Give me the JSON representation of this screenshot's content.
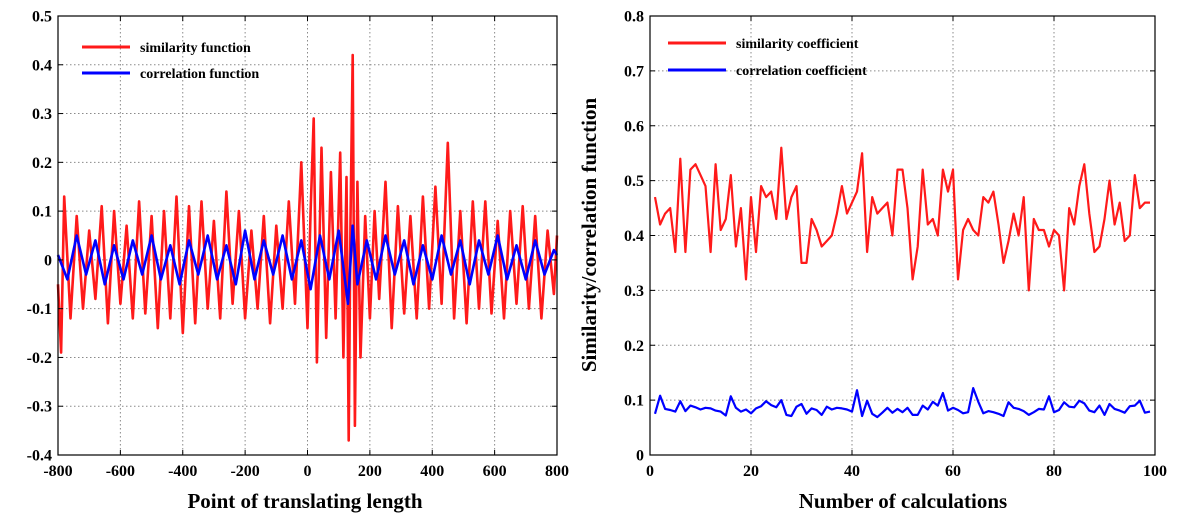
{
  "chart_data": [
    {
      "type": "line",
      "title": "",
      "xlabel": "Point of translating length",
      "ylabel": "",
      "xlim": [
        -800,
        800
      ],
      "ylim": [
        -0.4,
        0.5
      ],
      "xticks": [
        "-800",
        "-600",
        "-400",
        "-200",
        "0",
        "200",
        "400",
        "600",
        "800"
      ],
      "yticks": [
        "-0.4",
        "-0.3",
        "-0.2",
        "-0.1",
        "0",
        "0.1",
        "0.2",
        "0.3",
        "0.4",
        "0.5"
      ],
      "grid": true,
      "legend_position": "top-left",
      "series": [
        {
          "name": "similarity function",
          "color": "#ff1a1a",
          "x": [
            -800,
            -790,
            -780,
            -760,
            -740,
            -720,
            -700,
            -680,
            -660,
            -640,
            -620,
            -600,
            -580,
            -560,
            -540,
            -520,
            -500,
            -480,
            -460,
            -440,
            -420,
            -400,
            -380,
            -360,
            -340,
            -320,
            -300,
            -280,
            -260,
            -240,
            -220,
            -200,
            -180,
            -160,
            -140,
            -120,
            -100,
            -80,
            -60,
            -40,
            -20,
            0,
            10,
            20,
            30,
            45,
            60,
            75,
            90,
            105,
            115,
            125,
            132,
            138,
            145,
            152,
            160,
            170,
            185,
            200,
            215,
            230,
            250,
            270,
            290,
            310,
            330,
            350,
            370,
            390,
            410,
            430,
            450,
            470,
            490,
            510,
            530,
            550,
            570,
            590,
            610,
            630,
            650,
            670,
            690,
            710,
            730,
            750,
            770,
            790,
            800
          ],
          "values": [
            -0.05,
            -0.19,
            0.13,
            -0.12,
            0.09,
            -0.1,
            0.06,
            -0.08,
            0.11,
            -0.13,
            0.1,
            -0.09,
            0.07,
            -0.12,
            0.12,
            -0.11,
            0.09,
            -0.14,
            0.1,
            -0.12,
            0.13,
            -0.15,
            0.11,
            -0.13,
            0.12,
            -0.1,
            0.08,
            -0.12,
            0.14,
            -0.09,
            0.1,
            -0.12,
            0.06,
            -0.1,
            0.09,
            -0.13,
            0.07,
            -0.1,
            0.12,
            -0.09,
            0.2,
            -0.14,
            0.1,
            0.29,
            -0.21,
            0.23,
            -0.16,
            0.18,
            -0.12,
            0.22,
            -0.2,
            0.17,
            -0.37,
            0.08,
            0.42,
            -0.34,
            0.16,
            -0.2,
            0.09,
            -0.12,
            0.1,
            -0.08,
            0.16,
            -0.14,
            0.11,
            -0.11,
            0.09,
            -0.12,
            0.13,
            -0.1,
            0.15,
            -0.09,
            0.24,
            -0.12,
            0.1,
            -0.13,
            0.12,
            -0.1,
            0.12,
            -0.11,
            0.08,
            -0.12,
            0.1,
            -0.09,
            0.11,
            -0.1,
            0.09,
            -0.12,
            0.06,
            -0.07,
            0.05
          ]
        },
        {
          "name": "correlation function",
          "color": "#0000ff",
          "x": [
            -800,
            -770,
            -740,
            -710,
            -680,
            -650,
            -620,
            -590,
            -560,
            -530,
            -500,
            -470,
            -440,
            -410,
            -380,
            -350,
            -320,
            -290,
            -260,
            -230,
            -200,
            -170,
            -140,
            -110,
            -80,
            -50,
            -20,
            10,
            40,
            70,
            100,
            130,
            145,
            160,
            190,
            220,
            250,
            280,
            310,
            340,
            370,
            400,
            430,
            460,
            490,
            520,
            550,
            580,
            610,
            640,
            670,
            700,
            730,
            760,
            790,
            800
          ],
          "values": [
            0.01,
            -0.04,
            0.05,
            -0.03,
            0.04,
            -0.05,
            0.03,
            -0.04,
            0.04,
            -0.03,
            0.05,
            -0.04,
            0.03,
            -0.05,
            0.04,
            -0.03,
            0.05,
            -0.04,
            0.03,
            -0.05,
            0.06,
            -0.04,
            0.04,
            -0.03,
            0.05,
            -0.04,
            0.04,
            -0.06,
            0.05,
            -0.04,
            0.06,
            -0.09,
            0.07,
            -0.05,
            0.04,
            -0.04,
            0.05,
            -0.03,
            0.04,
            -0.05,
            0.03,
            -0.04,
            0.05,
            -0.03,
            0.04,
            -0.05,
            0.04,
            -0.03,
            0.05,
            -0.04,
            0.03,
            -0.04,
            0.04,
            -0.03,
            0.02,
            0.01
          ]
        }
      ]
    },
    {
      "type": "line",
      "title": "",
      "xlabel": "Number of calculations",
      "ylabel": "Similarity/correlation function",
      "xlim": [
        0,
        100
      ],
      "ylim": [
        0,
        0.8
      ],
      "xticks": [
        "0",
        "20",
        "40",
        "60",
        "80",
        "100"
      ],
      "yticks": [
        "0",
        "0.1",
        "0.2",
        "0.3",
        "0.4",
        "0.5",
        "0.6",
        "0.7",
        "0.8"
      ],
      "grid": true,
      "legend_position": "top-left",
      "series": [
        {
          "name": "similarity coefficient",
          "color": "#ff1a1a",
          "x": [
            1,
            2,
            3,
            4,
            5,
            6,
            7,
            8,
            9,
            10,
            11,
            12,
            13,
            14,
            15,
            16,
            17,
            18,
            19,
            20,
            21,
            22,
            23,
            24,
            25,
            26,
            27,
            28,
            29,
            30,
            31,
            32,
            33,
            34,
            35,
            36,
            37,
            38,
            39,
            40,
            41,
            42,
            43,
            44,
            45,
            46,
            47,
            48,
            49,
            50,
            51,
            52,
            53,
            54,
            55,
            56,
            57,
            58,
            59,
            60,
            61,
            62,
            63,
            64,
            65,
            66,
            67,
            68,
            69,
            70,
            71,
            72,
            73,
            74,
            75,
            76,
            77,
            78,
            79,
            80,
            81,
            82,
            83,
            84,
            85,
            86,
            87,
            88,
            89,
            90,
            91,
            92,
            93,
            94,
            95,
            96,
            97,
            98,
            99
          ],
          "values": [
            0.47,
            0.42,
            0.44,
            0.45,
            0.37,
            0.54,
            0.37,
            0.52,
            0.53,
            0.51,
            0.49,
            0.37,
            0.53,
            0.41,
            0.43,
            0.51,
            0.38,
            0.45,
            0.32,
            0.47,
            0.37,
            0.49,
            0.47,
            0.48,
            0.43,
            0.56,
            0.43,
            0.47,
            0.49,
            0.35,
            0.35,
            0.43,
            0.41,
            0.38,
            0.39,
            0.4,
            0.44,
            0.49,
            0.44,
            0.46,
            0.48,
            0.55,
            0.37,
            0.47,
            0.44,
            0.45,
            0.46,
            0.4,
            0.52,
            0.52,
            0.45,
            0.32,
            0.38,
            0.52,
            0.42,
            0.43,
            0.4,
            0.52,
            0.48,
            0.52,
            0.32,
            0.41,
            0.43,
            0.41,
            0.4,
            0.47,
            0.46,
            0.48,
            0.42,
            0.35,
            0.39,
            0.44,
            0.4,
            0.47,
            0.3,
            0.43,
            0.41,
            0.41,
            0.38,
            0.41,
            0.4,
            0.3,
            0.45,
            0.42,
            0.49,
            0.53,
            0.44,
            0.37,
            0.38,
            0.43,
            0.5,
            0.42,
            0.46,
            0.39,
            0.4,
            0.51,
            0.45,
            0.46,
            0.46
          ]
        },
        {
          "name": "correlation coefficient",
          "color": "#0000ff",
          "x": [
            1,
            2,
            3,
            4,
            5,
            6,
            7,
            8,
            9,
            10,
            11,
            12,
            13,
            14,
            15,
            16,
            17,
            18,
            19,
            20,
            21,
            22,
            23,
            24,
            25,
            26,
            27,
            28,
            29,
            30,
            31,
            32,
            33,
            34,
            35,
            36,
            37,
            38,
            39,
            40,
            41,
            42,
            43,
            44,
            45,
            46,
            47,
            48,
            49,
            50,
            51,
            52,
            53,
            54,
            55,
            56,
            57,
            58,
            59,
            60,
            61,
            62,
            63,
            64,
            65,
            66,
            67,
            68,
            69,
            70,
            71,
            72,
            73,
            74,
            75,
            76,
            77,
            78,
            79,
            80,
            81,
            82,
            83,
            84,
            85,
            86,
            87,
            88,
            89,
            90,
            91,
            92,
            93,
            94,
            95,
            96,
            97,
            98,
            99
          ],
          "values": [
            0.075,
            0.108,
            0.084,
            0.082,
            0.079,
            0.098,
            0.08,
            0.09,
            0.087,
            0.083,
            0.086,
            0.085,
            0.081,
            0.079,
            0.072,
            0.107,
            0.086,
            0.079,
            0.083,
            0.076,
            0.085,
            0.089,
            0.098,
            0.091,
            0.087,
            0.1,
            0.073,
            0.071,
            0.088,
            0.093,
            0.075,
            0.085,
            0.082,
            0.073,
            0.088,
            0.083,
            0.086,
            0.085,
            0.083,
            0.079,
            0.118,
            0.071,
            0.099,
            0.075,
            0.069,
            0.077,
            0.086,
            0.077,
            0.084,
            0.078,
            0.086,
            0.073,
            0.073,
            0.09,
            0.083,
            0.097,
            0.09,
            0.113,
            0.081,
            0.086,
            0.082,
            0.076,
            0.078,
            0.122,
            0.097,
            0.076,
            0.08,
            0.078,
            0.075,
            0.071,
            0.096,
            0.086,
            0.084,
            0.08,
            0.073,
            0.078,
            0.084,
            0.083,
            0.107,
            0.078,
            0.082,
            0.096,
            0.088,
            0.087,
            0.099,
            0.094,
            0.081,
            0.078,
            0.09,
            0.073,
            0.093,
            0.084,
            0.081,
            0.077,
            0.089,
            0.09,
            0.099,
            0.077,
            0.079
          ]
        }
      ]
    }
  ]
}
